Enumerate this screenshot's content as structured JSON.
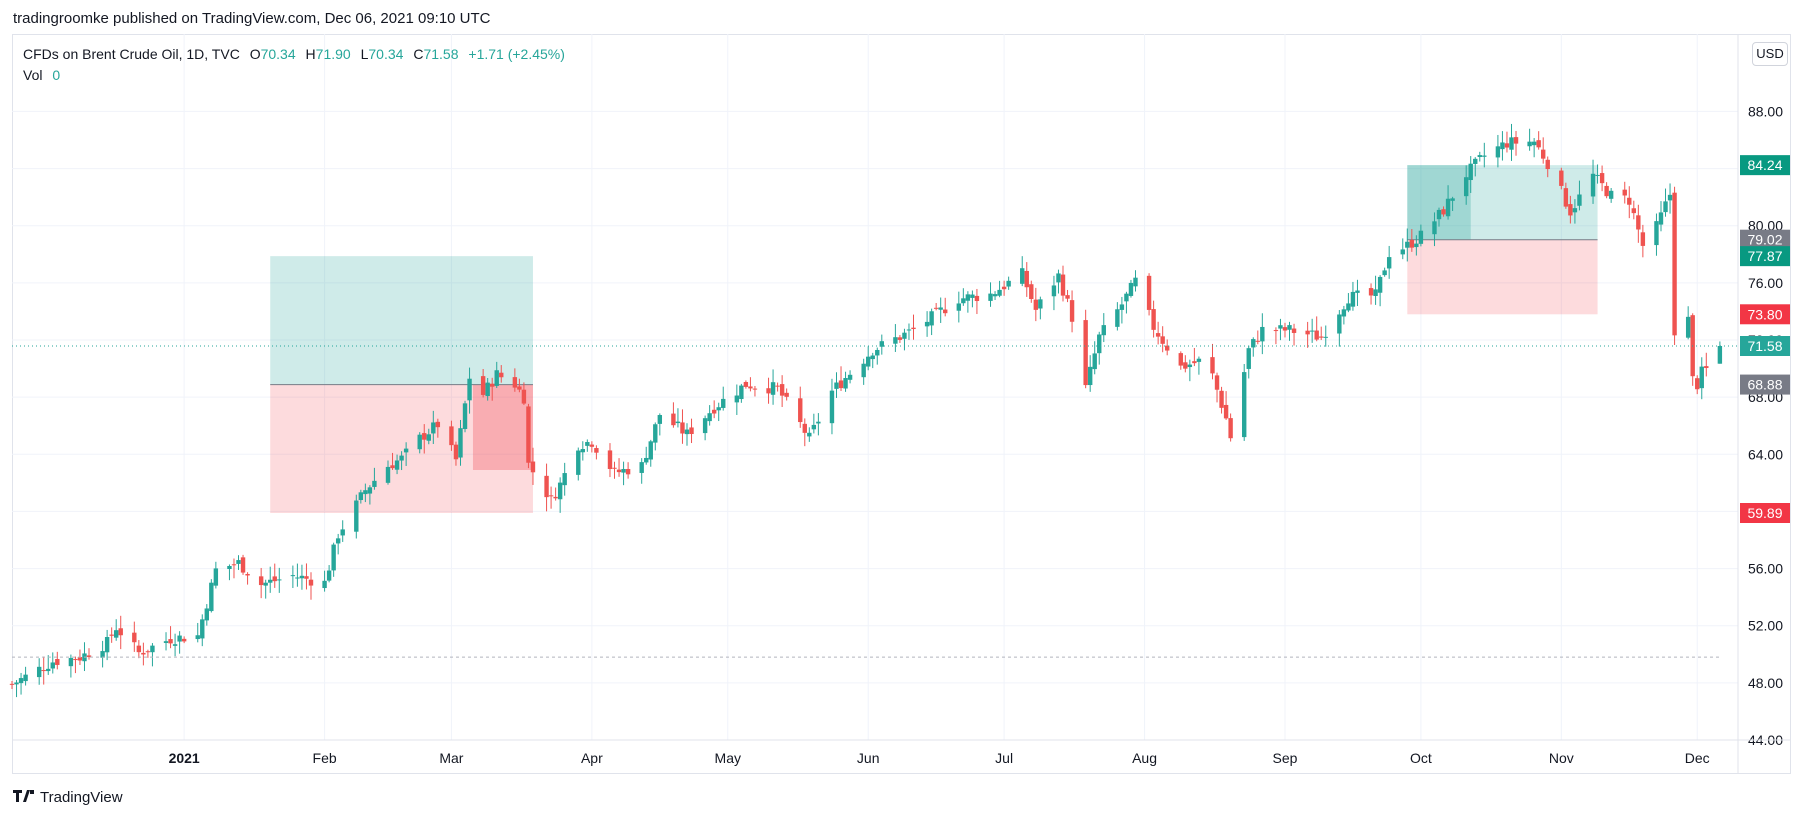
{
  "header": {
    "published": "tradingroomke published on TradingView.com, Dec 06, 2021 09:10 UTC"
  },
  "legend": {
    "symbol": "CFDs on Brent Crude Oil, 1D, TVC",
    "o_label": "O",
    "o_value": "70.34",
    "h_label": "H",
    "h_value": "71.90",
    "l_label": "L",
    "l_value": "70.34",
    "c_label": "C",
    "c_value": "71.58",
    "change": "+1.71 (+2.45%)",
    "vol_label": "Vol",
    "vol_value": "0"
  },
  "currency_button": "USD",
  "footer": {
    "brand": "TradingView"
  },
  "colors": {
    "up": "#26a69a",
    "down": "#ef5350",
    "grid": "#f0f3fa",
    "axis_text": "#131722",
    "gray_tag": "#787b86"
  },
  "chart_data": {
    "type": "candlestick",
    "y_ticks": [
      "44.00",
      "48.00",
      "52.00",
      "56.00",
      "60.00",
      "64.00",
      "68.00",
      "72.00",
      "76.00",
      "80.00",
      "84.00",
      "88.00"
    ],
    "ylim": [
      44,
      91.6
    ],
    "x_ticks": [
      "2021",
      "Feb",
      "Mar",
      "Apr",
      "May",
      "Jun",
      "Jul",
      "Aug",
      "Sep",
      "Oct",
      "Nov",
      "Dec"
    ],
    "x_start": "2020-11-24",
    "x_end": "2021-12-10",
    "price_tags": [
      {
        "label": "84.24",
        "value": 84.24,
        "color": "#089981"
      },
      {
        "label": "79.02",
        "value": 79.02,
        "color": "#787b86"
      },
      {
        "label": "77.87",
        "value": 77.87,
        "color": "#089981"
      },
      {
        "label": "73.80",
        "value": 73.8,
        "color": "#f23645"
      },
      {
        "label": "71.58",
        "value": 71.58,
        "color": "#26a69a"
      },
      {
        "label": "68.88",
        "value": 68.88,
        "color": "#787b86"
      },
      {
        "label": "59.89",
        "value": 59.89,
        "color": "#f23645"
      }
    ],
    "current_price": 71.58,
    "reference_line": 49.8,
    "positions": [
      {
        "name": "long-position-1",
        "start": "2021-01-20",
        "end": "2021-03-19",
        "entry": 68.88,
        "target": 77.87,
        "stop": 59.89,
        "filled_end": "2021-03-19",
        "filled_to": 62.9
      },
      {
        "name": "long-position-2",
        "start": "2021-09-28",
        "end": "2021-11-09",
        "entry": 79.02,
        "target": 84.24,
        "stop": 73.8,
        "filled_end": "2021-10-12",
        "filled_to": 84.24
      }
    ],
    "keypoints": [
      [
        "2020-11-24",
        47.9
      ],
      [
        "2020-12-03",
        49.5
      ],
      [
        "2020-12-09",
        49.8
      ],
      [
        "2020-12-15",
        50.8
      ],
      [
        "2020-12-17",
        51.9
      ],
      [
        "2020-12-22",
        50.1
      ],
      [
        "2020-12-29",
        51.1
      ],
      [
        "2021-01-04",
        51.3
      ],
      [
        "2021-01-06",
        53.6
      ],
      [
        "2021-01-08",
        55.9
      ],
      [
        "2021-01-13",
        56.4
      ],
      [
        "2021-01-18",
        54.9
      ],
      [
        "2021-01-25",
        55.5
      ],
      [
        "2021-02-01",
        55.0
      ],
      [
        "2021-02-04",
        58.4
      ],
      [
        "2021-02-10",
        61.5
      ],
      [
        "2021-02-15",
        63.2
      ],
      [
        "2021-02-18",
        63.7
      ],
      [
        "2021-02-22",
        65.1
      ],
      [
        "2021-02-26",
        66.1
      ],
      [
        "2021-03-02",
        63.6
      ],
      [
        "2021-03-05",
        69.4
      ],
      [
        "2021-03-08",
        68.2
      ],
      [
        "2021-03-11",
        69.6
      ],
      [
        "2021-03-15",
        68.9
      ],
      [
        "2021-03-17",
        68.0
      ],
      [
        "2021-03-18",
        63.3
      ],
      [
        "2021-03-23",
        60.8
      ],
      [
        "2021-03-25",
        61.9
      ],
      [
        "2021-03-29",
        64.7
      ],
      [
        "2021-04-01",
        64.9
      ],
      [
        "2021-04-06",
        62.7
      ],
      [
        "2021-04-12",
        63.2
      ],
      [
        "2021-04-16",
        66.8
      ],
      [
        "2021-04-22",
        65.4
      ],
      [
        "2021-04-28",
        67.3
      ],
      [
        "2021-05-05",
        68.9
      ],
      [
        "2021-05-12",
        68.6
      ],
      [
        "2021-05-19",
        65.1
      ],
      [
        "2021-05-24",
        68.4
      ],
      [
        "2021-06-02",
        71.3
      ],
      [
        "2021-06-11",
        72.7
      ],
      [
        "2021-06-21",
        74.9
      ],
      [
        "2021-06-28",
        75.2
      ],
      [
        "2021-07-05",
        76.6
      ],
      [
        "2021-07-08",
        74.1
      ],
      [
        "2021-07-13",
        76.5
      ],
      [
        "2021-07-16",
        73.6
      ],
      [
        "2021-07-19",
        68.6
      ],
      [
        "2021-07-22",
        72.2
      ],
      [
        "2021-07-27",
        74.5
      ],
      [
        "2021-07-30",
        76.1
      ],
      [
        "2021-08-03",
        72.9
      ],
      [
        "2021-08-09",
        70.1
      ],
      [
        "2021-08-13",
        70.5
      ],
      [
        "2021-08-16",
        69.5
      ],
      [
        "2021-08-19",
        66.5
      ],
      [
        "2021-08-20",
        65.2
      ],
      [
        "2021-08-24",
        71.3
      ],
      [
        "2021-08-27",
        72.7
      ],
      [
        "2021-09-02",
        72.7
      ],
      [
        "2021-09-09",
        72.2
      ],
      [
        "2021-09-15",
        75.0
      ],
      [
        "2021-09-21",
        75.1
      ],
      [
        "2021-09-24",
        78.1
      ],
      [
        "2021-09-28",
        78.6
      ],
      [
        "2021-10-01",
        79.3
      ],
      [
        "2021-10-06",
        81.1
      ],
      [
        "2021-10-11",
        83.6
      ],
      [
        "2021-10-15",
        84.9
      ],
      [
        "2021-10-20",
        85.8
      ],
      [
        "2021-10-26",
        85.9
      ],
      [
        "2021-10-29",
        84.4
      ],
      [
        "2021-11-03",
        81.0
      ],
      [
        "2021-11-08",
        83.5
      ],
      [
        "2021-11-12",
        82.1
      ],
      [
        "2021-11-16",
        81.8
      ],
      [
        "2021-11-19",
        78.6
      ],
      [
        "2021-11-22",
        79.9
      ],
      [
        "2021-11-25",
        82.2
      ],
      [
        "2021-11-26",
        72.7
      ],
      [
        "2021-11-29",
        73.4
      ],
      [
        "2021-11-30",
        69.2
      ],
      [
        "2021-12-01",
        68.9
      ],
      [
        "2021-12-02",
        69.7
      ],
      [
        "2021-12-03",
        69.9
      ],
      [
        "2021-12-06",
        71.58
      ]
    ]
  }
}
